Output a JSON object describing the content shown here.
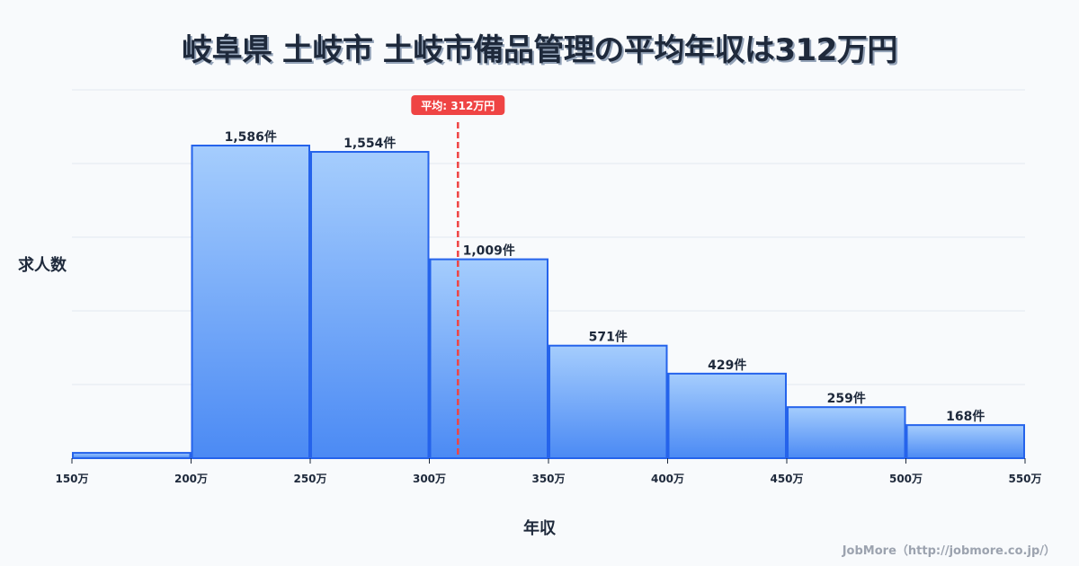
{
  "title": "岐阜県 土岐市 土岐市備品管理の平均年収は312万円",
  "y_axis_label": "求人数",
  "x_axis_label": "年収",
  "credit": "JobMore（http://jobmore.co.jp/）",
  "mean_marker": {
    "label": "平均: 312万円",
    "value": 312,
    "color": "#ef4444"
  },
  "colors": {
    "bar_top": "#a5cdfd",
    "bar_bottom": "#4b8af4",
    "bar_border": "#2563eb",
    "grid": "#e2e8f0",
    "mean": "#ef4444"
  },
  "chart_data": {
    "type": "bar",
    "title": "岐阜県 土岐市 土岐市備品管理の平均年収は312万円",
    "xlabel": "年収",
    "ylabel": "求人数",
    "categories": [
      "150-200万",
      "200-250万",
      "250-300万",
      "300-350万",
      "350-400万",
      "400-450万",
      "450-500万",
      "500-550万"
    ],
    "bin_edges": [
      150,
      200,
      250,
      300,
      350,
      400,
      450,
      500,
      550
    ],
    "x_tick_labels": [
      "150万",
      "200万",
      "250万",
      "300万",
      "350万",
      "400万",
      "450万",
      "500万",
      "550万"
    ],
    "values": [
      27,
      1586,
      1554,
      1009,
      571,
      429,
      259,
      168
    ],
    "value_labels": [
      "",
      "1,586件",
      "1,554件",
      "1,009件",
      "571件",
      "429件",
      "259件",
      "168件"
    ],
    "mean": 312,
    "ylim": [
      0,
      1870
    ],
    "grid": true,
    "legend": null
  }
}
